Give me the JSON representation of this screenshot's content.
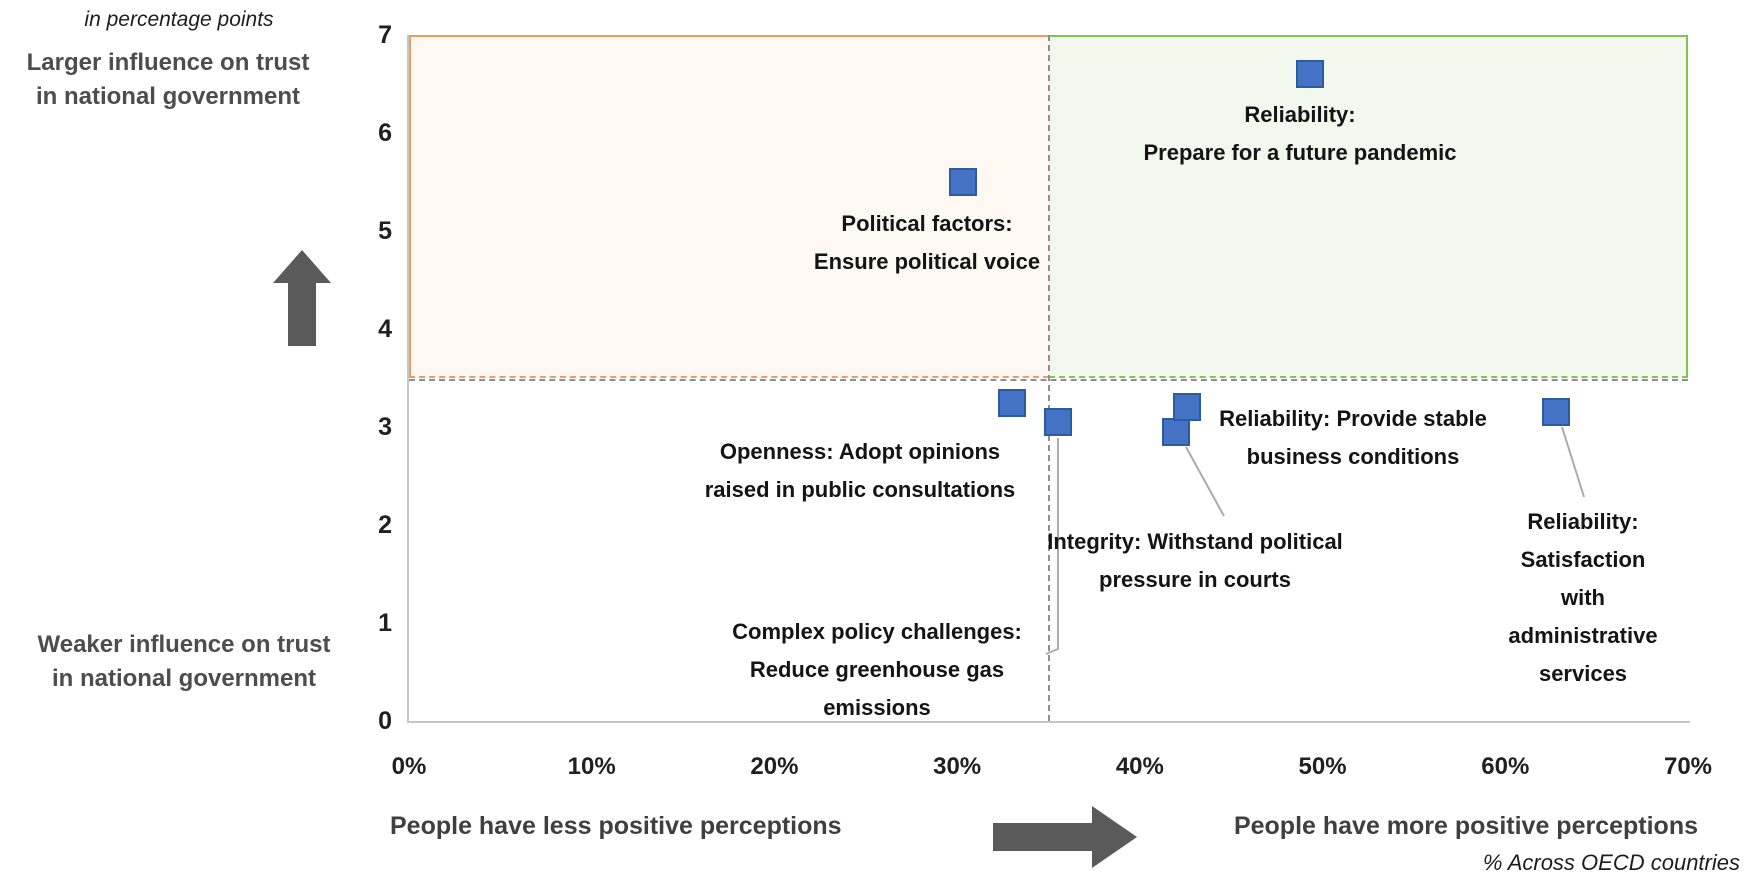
{
  "colors": {
    "point_fill": "#4472c4",
    "point_border": "#2e5b9f",
    "quadrant_left_border": "#ed9d5f",
    "quadrant_left_fill": "#fdf8f2",
    "quadrant_right_border": "#84c252",
    "quadrant_right_fill": "#f3f8ee",
    "dashed_line": "#8f8f8f",
    "arrow": "#5a5a5a"
  },
  "chart_data": {
    "type": "scatter",
    "title": "",
    "x_axis": {
      "min": 0,
      "max": 70,
      "tick_labels": [
        "0%",
        "10%",
        "20%",
        "30%",
        "40%",
        "50%",
        "60%",
        "70%"
      ],
      "caption_left": "People have less positive perceptions",
      "caption_right": "People have more positive perceptions",
      "unit_note": "% Across OECD countries"
    },
    "y_axis": {
      "min": 0,
      "max": 7,
      "ticks": [
        7,
        6,
        5,
        4,
        3,
        2,
        1,
        0
      ],
      "unit_note": "in percentage points",
      "caption_top": "Larger influence on trust\nin national government",
      "caption_bottom": "Weaker influence on trust\nin national government"
    },
    "reference": {
      "vline_x_pct": 35,
      "band_y_range": [
        3.5,
        7
      ]
    },
    "quadrants": [
      {
        "id": "left",
        "x_range_pct": [
          0,
          35
        ],
        "y_range": [
          3.5,
          7
        ]
      },
      {
        "id": "right",
        "x_range_pct": [
          35,
          70
        ],
        "y_range": [
          3.5,
          7
        ]
      }
    ],
    "points": [
      {
        "id": "pandemic",
        "x_pct": 49.3,
        "y": 6.6,
        "label": "Reliability:\nPrepare for a future pandemic"
      },
      {
        "id": "political",
        "x_pct": 30.3,
        "y": 5.5,
        "label": "Political factors:\nEnsure political voice"
      },
      {
        "id": "openness",
        "x_pct": 33.0,
        "y": 3.25,
        "label": "Openness: Adopt opinions\nraised in public consultations"
      },
      {
        "id": "complex",
        "x_pct": 35.5,
        "y": 3.05,
        "label": "Complex policy challenges:\nReduce greenhouse gas\nemissions"
      },
      {
        "id": "integrity",
        "x_pct": 42.0,
        "y": 2.95,
        "label": "Integrity: Withstand political\npressure in courts"
      },
      {
        "id": "stable",
        "x_pct": 42.6,
        "y": 3.2,
        "label": "Reliability: Provide stable\nbusiness conditions"
      },
      {
        "id": "admin",
        "x_pct": 62.8,
        "y": 3.15,
        "label": "Reliability: Satisfaction\nwith administrative\nservices"
      }
    ],
    "legend": null,
    "grid": false
  }
}
